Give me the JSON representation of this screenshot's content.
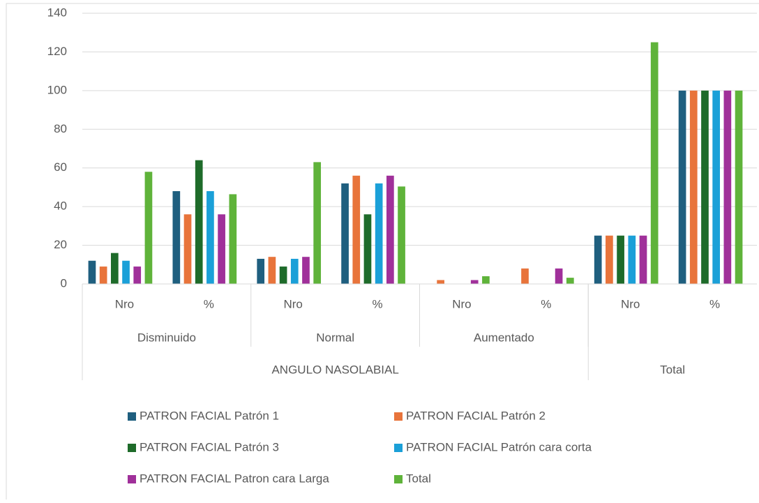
{
  "chart_data": {
    "type": "bar",
    "categories": [
      "Nro",
      "%",
      "Nro",
      "%",
      "Nro",
      "%",
      "Nro",
      "%"
    ],
    "groups": [
      "Disminuido",
      "Normal",
      "Aumentado",
      null
    ],
    "supergroups": [
      {
        "label": "ANGULO NASOLABIAL",
        "categories": 6
      },
      {
        "label": "Total",
        "categories": 2
      }
    ],
    "series": [
      {
        "name": "PATRON FACIAL Patrón 1",
        "color": "#1f5f7f",
        "values": [
          12,
          48,
          13,
          52,
          0,
          0,
          25,
          100
        ]
      },
      {
        "name": "PATRON FACIAL Patrón 2",
        "color": "#e8743b",
        "values": [
          9,
          36,
          14,
          56,
          2,
          8,
          25,
          100
        ]
      },
      {
        "name": "PATRON FACIAL Patrón 3",
        "color": "#1e6b2a",
        "values": [
          16,
          64,
          9,
          36,
          0,
          0,
          25,
          100
        ]
      },
      {
        "name": "PATRON FACIAL Patrón cara corta",
        "color": "#1ba0d8",
        "values": [
          12,
          48,
          13,
          52,
          0,
          0,
          25,
          100
        ]
      },
      {
        "name": "PATRON FACIAL Patron cara Larga",
        "color": "#a0309a",
        "values": [
          9,
          36,
          14,
          56,
          2,
          8,
          25,
          100
        ]
      },
      {
        "name": "Total",
        "color": "#5fb33a",
        "values": [
          58,
          46.4,
          63,
          50.4,
          4,
          3.2,
          125,
          100
        ]
      }
    ],
    "ylim": [
      0,
      140
    ],
    "yticks": [
      0,
      20,
      40,
      60,
      80,
      100,
      120,
      140
    ],
    "grid": true,
    "legend": "bottom"
  }
}
